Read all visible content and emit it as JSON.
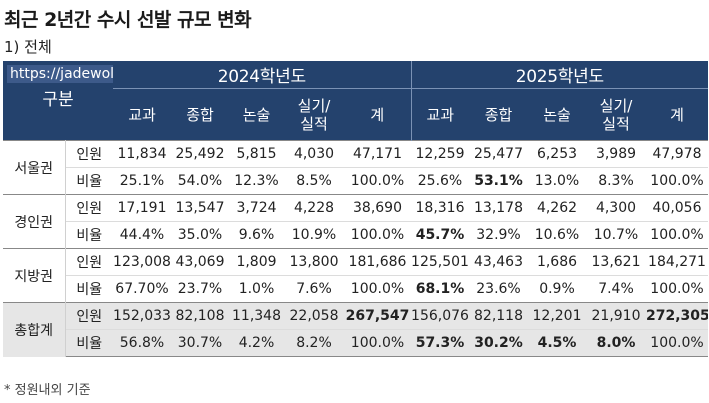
{
  "title": "최근 2년간 수시 선발 규모 변화",
  "subtitle": "1) 전체",
  "watermark": "https://jadewolves.tistory.com",
  "header": {
    "gubun": "구분",
    "year_2024": "2024학년도",
    "year_2025": "2025학년도",
    "columns_2024": [
      "교과",
      "종합",
      "논술",
      "실기/실적",
      "계"
    ],
    "columns_2025": [
      "교과",
      "종합",
      "논술",
      "실기/실적",
      "계"
    ]
  },
  "metrics": {
    "count": "인원",
    "ratio": "비율"
  },
  "regions": [
    {
      "name": "서울권",
      "count": [
        "11,834",
        "25,492",
        "5,815",
        "4,030",
        "47,171",
        "12,259",
        "25,477",
        "6,253",
        "3,989",
        "47,978"
      ],
      "ratio": [
        "25.1%",
        "54.0%",
        "12.3%",
        "8.5%",
        "100.0%",
        "25.6%",
        "53.1%",
        "13.0%",
        "8.3%",
        "100.0%"
      ],
      "highlight_count": [],
      "highlight_ratio": [
        6
      ]
    },
    {
      "name": "경인권",
      "count": [
        "17,191",
        "13,547",
        "3,724",
        "4,228",
        "38,690",
        "18,316",
        "13,178",
        "4,262",
        "4,300",
        "40,056"
      ],
      "ratio": [
        "44.4%",
        "35.0%",
        "9.6%",
        "10.9%",
        "100.0%",
        "45.7%",
        "32.9%",
        "10.6%",
        "10.7%",
        "100.0%"
      ],
      "highlight_count": [],
      "highlight_ratio": [
        5
      ]
    },
    {
      "name": "지방권",
      "count": [
        "123,008",
        "43,069",
        "1,809",
        "13,800",
        "181,686",
        "125,501",
        "43,463",
        "1,686",
        "13,621",
        "184,271"
      ],
      "ratio": [
        "67.70%",
        "23.7%",
        "1.0%",
        "7.6%",
        "100.0%",
        "68.1%",
        "23.6%",
        "0.9%",
        "7.4%",
        "100.0%"
      ],
      "highlight_count": [],
      "highlight_ratio": [
        5
      ]
    },
    {
      "name": "총합계",
      "count": [
        "152,033",
        "82,108",
        "11,348",
        "22,058",
        "267,547",
        "156,076",
        "82,118",
        "12,201",
        "21,910",
        "272,305"
      ],
      "ratio": [
        "56.8%",
        "30.7%",
        "4.2%",
        "8.2%",
        "100.0%",
        "57.3%",
        "30.2%",
        "4.5%",
        "8.0%",
        "100.0%"
      ],
      "highlight_count": [
        4,
        9
      ],
      "highlight_ratio": [
        5,
        6,
        7,
        8
      ]
    }
  ],
  "footnote": "* 정원내외 기준"
}
